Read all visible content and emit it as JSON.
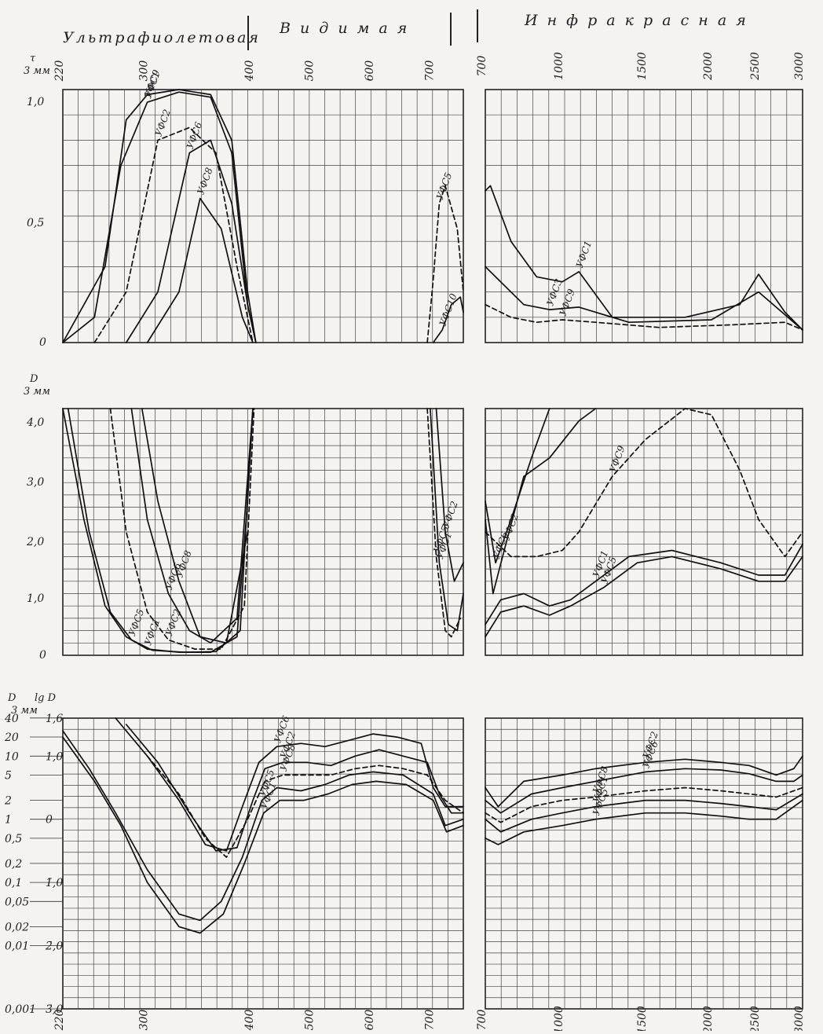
{
  "regions": {
    "uv": "Ультрафиолетовая",
    "visible": "В и д и м а я",
    "ir": "И н ф р а к р а с н а я"
  },
  "top_wavelength_ticks": {
    "uv_vis": [
      "220",
      "300",
      "400",
      "500",
      "600",
      "700"
    ],
    "ir": [
      "700",
      "1000",
      "1500",
      "2000",
      "2500",
      "3000"
    ]
  },
  "bottom_wavelength_ticks": {
    "uv_vis": [
      "220",
      "300",
      "400",
      "500",
      "600",
      "700"
    ],
    "ir": [
      "700",
      "1000",
      "1500",
      "2000",
      "2500",
      "3000"
    ]
  },
  "panel1": {
    "ylabel": "τ",
    "thickness": "3 мм",
    "yticks": [
      "1,0",
      "0,5",
      "0"
    ]
  },
  "panel2": {
    "ylabel": "D",
    "thickness": "3 мм",
    "yticks": [
      "4,0",
      "3,0",
      "2,0",
      "1,0",
      "0"
    ]
  },
  "panel3": {
    "ylabel_left": "D",
    "ylabel_right": "lg D",
    "thickness": "3 мм",
    "d_ticks": [
      "40",
      "20",
      "10",
      "5",
      "2",
      "1",
      "0,5",
      "0,2",
      "0,1",
      "0,05",
      "0,02",
      "0,01",
      "0,001"
    ],
    "lg_ticks": [
      "1,6",
      "1,0",
      "0",
      "1̄,0",
      "2̄,0",
      "3̄,0"
    ]
  },
  "chart_data": [
    {
      "type": "line",
      "panel": "transmittance-uv-vis",
      "ylim": [
        0,
        1.0
      ],
      "series": [
        {
          "name": "УФС9",
          "x": [
            220,
            260,
            280,
            300,
            330,
            360,
            380,
            395,
            405
          ],
          "y": [
            0,
            0.3,
            0.88,
            0.98,
            1.0,
            0.98,
            0.8,
            0.2,
            0
          ]
        },
        {
          "name": "УФС1",
          "x": [
            220,
            250,
            275,
            300,
            330,
            360,
            380,
            395,
            405
          ],
          "y": [
            0,
            0.1,
            0.7,
            0.95,
            0.99,
            0.97,
            0.75,
            0.15,
            0
          ]
        },
        {
          "name": "УФС2",
          "x": [
            250,
            280,
            310,
            340,
            365,
            385,
            400
          ],
          "y": [
            0,
            0.2,
            0.8,
            0.85,
            0.75,
            0.3,
            0
          ]
        },
        {
          "name": "УФС6",
          "x": [
            280,
            310,
            340,
            360,
            380,
            395,
            405
          ],
          "y": [
            0,
            0.2,
            0.75,
            0.8,
            0.55,
            0.15,
            0
          ]
        },
        {
          "name": "УФС8",
          "x": [
            300,
            330,
            350,
            370,
            390,
            400
          ],
          "y": [
            0,
            0.2,
            0.57,
            0.45,
            0.1,
            0
          ]
        },
        {
          "name": "УФС5",
          "x": [
            690,
            700,
            710,
            720,
            740,
            750
          ],
          "y": [
            0,
            0.25,
            0.55,
            0.62,
            0.45,
            0.2
          ]
        },
        {
          "name": "УФС10",
          "x": [
            700,
            715,
            730,
            745,
            750
          ],
          "y": [
            0,
            0.05,
            0.15,
            0.18,
            0.12
          ]
        }
      ]
    },
    {
      "type": "line",
      "panel": "transmittance-ir",
      "ylim": [
        0,
        1.0
      ],
      "series": [
        {
          "name": "УФС1",
          "x": [
            700,
            720,
            800,
            900,
            1000,
            1100,
            1300,
            1800,
            2300,
            2500,
            2800,
            3000
          ],
          "y": [
            0.6,
            0.62,
            0.4,
            0.26,
            0.24,
            0.28,
            0.1,
            0.1,
            0.15,
            0.27,
            0.12,
            0.05
          ]
        },
        {
          "name": "УФС3",
          "x": [
            700,
            750,
            850,
            950,
            1100,
            1400,
            2000,
            2500,
            3000
          ],
          "y": [
            0.3,
            0.25,
            0.15,
            0.13,
            0.14,
            0.08,
            0.09,
            0.2,
            0.05
          ]
        },
        {
          "name": "УФС9",
          "x": [
            700,
            800,
            900,
            1000,
            1200,
            1600,
            2200,
            2800,
            3000
          ],
          "y": [
            0.15,
            0.1,
            0.08,
            0.09,
            0.08,
            0.06,
            0.07,
            0.08,
            0.05
          ]
        }
      ]
    },
    {
      "type": "line",
      "panel": "optical-density-uv-vis",
      "ylim": [
        0,
        4.0
      ],
      "series": [
        {
          "name": "УФС1",
          "x": [
            220,
            240,
            260,
            280,
            300,
            330,
            360,
            385,
            395,
            400
          ],
          "y": [
            4.0,
            2.2,
            0.8,
            0.3,
            0.1,
            0.05,
            0.05,
            0.3,
            2.5,
            4.0
          ]
        },
        {
          "name": "УФС5",
          "x": [
            225,
            245,
            265,
            285,
            305,
            335,
            365,
            388,
            398
          ],
          "y": [
            4.0,
            2.0,
            0.7,
            0.25,
            0.08,
            0.05,
            0.06,
            0.4,
            3.5
          ]
        },
        {
          "name": "УФС2",
          "x": [
            265,
            280,
            300,
            320,
            345,
            370,
            392,
            402
          ],
          "y": [
            4.0,
            2.0,
            0.7,
            0.25,
            0.1,
            0.1,
            0.8,
            4.0
          ]
        },
        {
          "name": "УФС6",
          "x": [
            285,
            300,
            320,
            340,
            360,
            385,
            400
          ],
          "y": [
            4.0,
            2.2,
            1.0,
            0.4,
            0.2,
            0.6,
            4.0
          ]
        },
        {
          "name": "УФС8",
          "x": [
            295,
            310,
            330,
            350,
            375,
            395
          ],
          "y": [
            4.0,
            2.5,
            1.2,
            0.3,
            0.2,
            2.0
          ]
        },
        {
          "name": "УФС5",
          "x": [
            690,
            705,
            720,
            730,
            745
          ],
          "y": [
            4.0,
            1.6,
            0.4,
            0.3,
            0.6
          ]
        },
        {
          "name": "УФС1",
          "x": [
            695,
            710,
            725,
            740,
            750
          ],
          "y": [
            4.0,
            1.5,
            0.5,
            0.4,
            1.0
          ]
        },
        {
          "name": "УФС2",
          "x": [
            705,
            720,
            735,
            750
          ],
          "y": [
            4.0,
            2.0,
            1.2,
            1.5
          ]
        }
      ]
    },
    {
      "type": "line",
      "panel": "optical-density-ir",
      "ylim": [
        0,
        4.0
      ],
      "series": [
        {
          "name": "УФС2",
          "x": [
            700,
            730,
            780,
            850,
            950,
            1100,
            1200
          ],
          "y": [
            2.2,
            1.0,
            1.8,
            2.9,
            3.2,
            3.8,
            4.0
          ]
        },
        {
          "name": "УФС6",
          "x": [
            700,
            740,
            800,
            880,
            950
          ],
          "y": [
            2.5,
            1.5,
            2.2,
            3.2,
            4.0
          ]
        },
        {
          "name": "УФС9",
          "x": [
            700,
            800,
            900,
            1000,
            1100,
            1300,
            1500,
            1800,
            2000,
            2300,
            2500,
            2800,
            3000
          ],
          "y": [
            2.0,
            1.6,
            1.6,
            1.7,
            2.0,
            2.9,
            3.5,
            4.0,
            3.9,
            3.0,
            2.2,
            1.6,
            2.0
          ]
        },
        {
          "name": "УФС1",
          "x": [
            700,
            760,
            850,
            950,
            1050,
            1200,
            1400,
            1700,
            2100,
            2500,
            2800,
            3000
          ],
          "y": [
            0.5,
            0.9,
            1.0,
            0.8,
            0.9,
            1.2,
            1.6,
            1.7,
            1.5,
            1.3,
            1.3,
            1.8
          ]
        },
        {
          "name": "УФС5",
          "x": [
            700,
            760,
            850,
            950,
            1050,
            1250,
            1450,
            1700,
            2100,
            2500,
            2800,
            3000
          ],
          "y": [
            0.3,
            0.7,
            0.8,
            0.65,
            0.8,
            1.1,
            1.5,
            1.6,
            1.4,
            1.2,
            1.2,
            1.6
          ]
        }
      ]
    },
    {
      "type": "line",
      "panel": "log-density-uv-vis",
      "ylim": [
        -3.0,
        1.6
      ],
      "series": [
        {
          "name": "УФС6",
          "x": [
            270,
            300,
            330,
            355,
            375,
            390,
            410,
            440,
            480,
            520,
            560,
            600,
            640,
            680,
            700,
            720,
            750
          ],
          "y": [
            1.6,
            1.0,
            0.3,
            -0.4,
            -0.5,
            0.2,
            0.9,
            1.15,
            1.2,
            1.15,
            1.25,
            1.35,
            1.3,
            1.2,
            0.5,
            0.2,
            0.2
          ]
        },
        {
          "name": "УФС2",
          "x": [
            280,
            310,
            340,
            365,
            385,
            400,
            420,
            450,
            490,
            530,
            570,
            610,
            650,
            690,
            710,
            730,
            750
          ],
          "y": [
            1.5,
            0.9,
            0.1,
            -0.5,
            -0.45,
            0.3,
            0.8,
            0.9,
            0.9,
            0.85,
            1.0,
            1.1,
            1.0,
            0.9,
            0.4,
            0.1,
            0.1
          ]
        },
        {
          "name": "УФС8",
          "x": [
            300,
            330,
            355,
            375,
            395,
            420,
            450,
            490,
            530,
            570,
            610,
            650,
            690,
            720,
            750
          ],
          "y": [
            1.0,
            0.4,
            -0.3,
            -0.6,
            0.0,
            0.6,
            0.7,
            0.7,
            0.7,
            0.8,
            0.85,
            0.8,
            0.7,
            0.3,
            0.1
          ]
        },
        {
          "name": "УФС5",
          "x": [
            220,
            245,
            270,
            300,
            330,
            350,
            370,
            390,
            415,
            440,
            480,
            520,
            560,
            600,
            650,
            700,
            720,
            750
          ],
          "y": [
            1.4,
            0.8,
            0.1,
            -0.8,
            -1.5,
            -1.6,
            -1.3,
            -0.6,
            0.3,
            0.5,
            0.45,
            0.55,
            0.7,
            0.75,
            0.7,
            0.4,
            -0.1,
            0.0
          ]
        },
        {
          "name": "УФС1",
          "x": [
            220,
            250,
            275,
            300,
            330,
            350,
            372,
            392,
            418,
            445,
            485,
            525,
            565,
            605,
            655,
            700,
            722,
            750
          ],
          "y": [
            1.3,
            0.6,
            -0.1,
            -1.0,
            -1.7,
            -1.8,
            -1.5,
            -0.7,
            0.1,
            0.3,
            0.3,
            0.4,
            0.55,
            0.6,
            0.55,
            0.3,
            -0.2,
            -0.1
          ]
        }
      ]
    },
    {
      "type": "line",
      "panel": "log-density-ir",
      "ylim": [
        -3.0,
        1.6
      ],
      "series": [
        {
          "name": "УФС2",
          "x": [
            700,
            750,
            850,
            1000,
            1200,
            1500,
            1800,
            2100,
            2400,
            2700,
            2900,
            3000
          ],
          "y": [
            0.5,
            0.2,
            0.6,
            0.7,
            0.8,
            0.9,
            0.95,
            0.9,
            0.85,
            0.7,
            0.8,
            1.0
          ]
        },
        {
          "name": "УФС6",
          "x": [
            700,
            760,
            880,
            1000,
            1200,
            1500,
            1800,
            2100,
            2400,
            2700,
            2900,
            3000
          ],
          "y": [
            0.3,
            0.1,
            0.4,
            0.5,
            0.6,
            0.75,
            0.8,
            0.78,
            0.72,
            0.6,
            0.6,
            0.7
          ]
        },
        {
          "name": "УФС8",
          "x": [
            700,
            760,
            880,
            1000,
            1200,
            1500,
            1800,
            2100,
            2400,
            2700,
            3000
          ],
          "y": [
            0.1,
            -0.05,
            0.2,
            0.3,
            0.35,
            0.45,
            0.5,
            0.45,
            0.4,
            0.35,
            0.5
          ]
        },
        {
          "name": "УФС1",
          "x": [
            700,
            760,
            880,
            1000,
            1200,
            1500,
            1800,
            2100,
            2400,
            2700,
            3000
          ],
          "y": [
            0.0,
            -0.2,
            0.0,
            0.1,
            0.2,
            0.3,
            0.3,
            0.25,
            0.2,
            0.15,
            0.4
          ]
        },
        {
          "name": "УФС5",
          "x": [
            700,
            750,
            850,
            1000,
            1200,
            1500,
            1800,
            2100,
            2400,
            2700,
            3000
          ],
          "y": [
            -0.3,
            -0.4,
            -0.2,
            -0.1,
            0.0,
            0.1,
            0.1,
            0.05,
            0.0,
            0.0,
            0.3
          ]
        }
      ]
    }
  ]
}
